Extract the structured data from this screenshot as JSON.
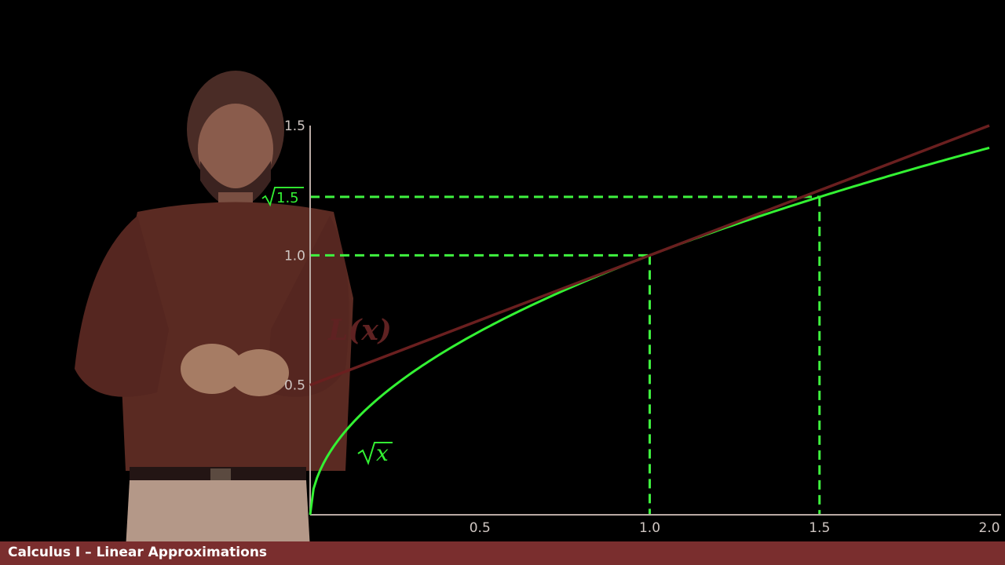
{
  "footer": {
    "title": "Calculus I – Linear Approximations"
  },
  "labels": {
    "linear": "L(x)",
    "sqrt": "x",
    "sqrt15": "1.5"
  },
  "colors": {
    "sqrt_curve": "#33f233",
    "linear_curve": "#6a1f1f",
    "reference": "#3ff23f",
    "footer_bg": "#7a2e2e"
  },
  "chart_data": {
    "type": "line",
    "title": "",
    "xlabel": "",
    "ylabel": "",
    "xlim": [
      0,
      2.0
    ],
    "ylim": [
      0,
      1.5
    ],
    "x_ticks": [
      "0.5",
      "1.0",
      "1.5",
      "2.0"
    ],
    "y_ticks": [
      "0.5",
      "1.0",
      "1.5"
    ],
    "series": [
      {
        "name": "L(x)",
        "function": "0.5 + 0.5*x",
        "x": [
          0,
          0.5,
          1.0,
          1.5,
          2.0
        ],
        "y": [
          0.5,
          0.75,
          1.0,
          1.25,
          1.5
        ]
      },
      {
        "name": "√x",
        "function": "sqrt(x)",
        "x": [
          0,
          0.25,
          0.5,
          1.0,
          1.5,
          2.0
        ],
        "y": [
          0,
          0.5,
          0.707,
          1.0,
          1.225,
          1.414
        ]
      }
    ],
    "reference_points": [
      {
        "x": 1.0,
        "y": 1.0
      },
      {
        "x": 1.5,
        "y": 1.225
      }
    ],
    "grid": false
  }
}
